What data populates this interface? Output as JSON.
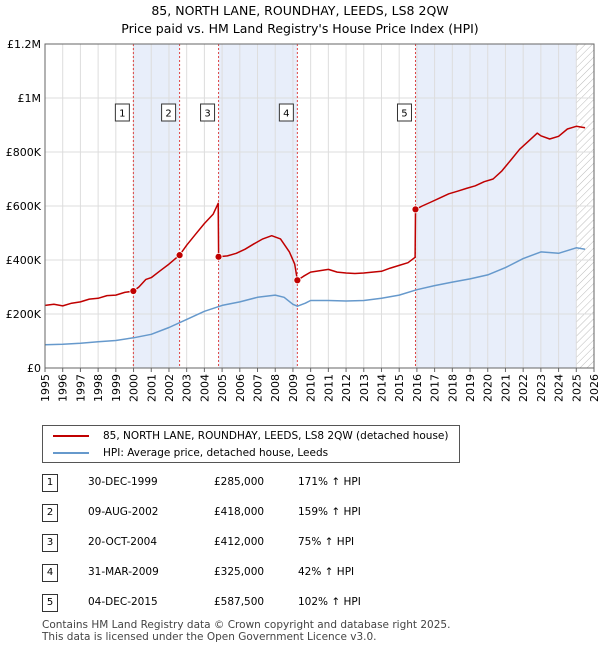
{
  "title": {
    "line1": "85, NORTH LANE, ROUNDHAY, LEEDS, LS8 2QW",
    "line2": "Price paid vs. HM Land Registry's House Price Index (HPI)"
  },
  "chart_data": {
    "type": "line",
    "title": "85, NORTH LANE, ROUNDHAY, LEEDS, LS8 2QW — Price paid vs. HM Land Registry's House Price Index (HPI)",
    "xlim": [
      1995,
      2026
    ],
    "ylim": [
      0,
      1200000
    ],
    "xticks": [
      1995,
      1996,
      1997,
      1998,
      1999,
      2000,
      2001,
      2002,
      2003,
      2004,
      2005,
      2006,
      2007,
      2008,
      2009,
      2010,
      2011,
      2012,
      2013,
      2014,
      2015,
      2016,
      2017,
      2018,
      2019,
      2020,
      2021,
      2022,
      2023,
      2024,
      2025,
      2026
    ],
    "yticks": [
      {
        "value": 0,
        "label": "£0"
      },
      {
        "value": 200000,
        "label": "£200K"
      },
      {
        "value": 400000,
        "label": "£400K"
      },
      {
        "value": 600000,
        "label": "£600K"
      },
      {
        "value": 800000,
        "label": "£800K"
      },
      {
        "value": 1000000,
        "label": "£1M"
      },
      {
        "value": 1200000,
        "label": "£1.2M"
      }
    ],
    "shaded_spans": [
      [
        1999.99,
        2002.6
      ],
      [
        2004.8,
        2009.25
      ],
      [
        2015.92,
        2025.0
      ]
    ],
    "hatched_from": 2025.0,
    "series": [
      {
        "name": "85, NORTH LANE, ROUNDHAY, LEEDS, LS8 2QW (detached house)",
        "color": "#c00000",
        "points": [
          [
            1995.0,
            232000
          ],
          [
            1995.5,
            236000
          ],
          [
            1996.0,
            230000
          ],
          [
            1996.5,
            240000
          ],
          [
            1997.0,
            245000
          ],
          [
            1997.5,
            255000
          ],
          [
            1998.0,
            258000
          ],
          [
            1998.5,
            268000
          ],
          [
            1999.0,
            270000
          ],
          [
            1999.5,
            280000
          ],
          [
            1999.99,
            285000
          ],
          [
            2000.3,
            300000
          ],
          [
            2000.7,
            328000
          ],
          [
            2001.0,
            335000
          ],
          [
            2001.5,
            360000
          ],
          [
            2002.0,
            385000
          ],
          [
            2002.6,
            418000
          ],
          [
            2003.0,
            455000
          ],
          [
            2003.5,
            495000
          ],
          [
            2004.0,
            535000
          ],
          [
            2004.5,
            570000
          ],
          [
            2004.78,
            610000
          ],
          [
            2004.8,
            412000
          ],
          [
            2005.3,
            415000
          ],
          [
            2005.8,
            425000
          ],
          [
            2006.3,
            440000
          ],
          [
            2006.8,
            460000
          ],
          [
            2007.3,
            478000
          ],
          [
            2007.8,
            490000
          ],
          [
            2008.3,
            478000
          ],
          [
            2008.8,
            430000
          ],
          [
            2009.1,
            385000
          ],
          [
            2009.25,
            325000
          ],
          [
            2009.6,
            340000
          ],
          [
            2010.0,
            355000
          ],
          [
            2010.5,
            360000
          ],
          [
            2011.0,
            365000
          ],
          [
            2011.5,
            355000
          ],
          [
            2012.0,
            352000
          ],
          [
            2012.5,
            350000
          ],
          [
            2013.0,
            352000
          ],
          [
            2013.5,
            355000
          ],
          [
            2014.0,
            358000
          ],
          [
            2014.5,
            370000
          ],
          [
            2015.0,
            380000
          ],
          [
            2015.5,
            390000
          ],
          [
            2015.9,
            410000
          ],
          [
            2015.92,
            587500
          ],
          [
            2016.3,
            600000
          ],
          [
            2016.8,
            615000
          ],
          [
            2017.3,
            630000
          ],
          [
            2017.8,
            645000
          ],
          [
            2018.3,
            655000
          ],
          [
            2018.8,
            665000
          ],
          [
            2019.3,
            675000
          ],
          [
            2019.8,
            690000
          ],
          [
            2020.3,
            700000
          ],
          [
            2020.8,
            730000
          ],
          [
            2021.3,
            770000
          ],
          [
            2021.8,
            810000
          ],
          [
            2022.3,
            840000
          ],
          [
            2022.8,
            870000
          ],
          [
            2023.0,
            860000
          ],
          [
            2023.5,
            848000
          ],
          [
            2024.0,
            858000
          ],
          [
            2024.5,
            885000
          ],
          [
            2025.0,
            895000
          ],
          [
            2025.5,
            890000
          ]
        ]
      },
      {
        "name": "HPI: Average price, detached house, Leeds",
        "color": "#6699cc",
        "points": [
          [
            1995.0,
            86000
          ],
          [
            1996.0,
            88000
          ],
          [
            1997.0,
            92000
          ],
          [
            1998.0,
            97000
          ],
          [
            1999.0,
            102000
          ],
          [
            2000.0,
            112000
          ],
          [
            2001.0,
            125000
          ],
          [
            2002.0,
            150000
          ],
          [
            2003.0,
            180000
          ],
          [
            2004.0,
            210000
          ],
          [
            2005.0,
            232000
          ],
          [
            2006.0,
            245000
          ],
          [
            2007.0,
            262000
          ],
          [
            2008.0,
            270000
          ],
          [
            2008.5,
            262000
          ],
          [
            2009.0,
            236000
          ],
          [
            2009.25,
            229000
          ],
          [
            2009.7,
            240000
          ],
          [
            2010.0,
            250000
          ],
          [
            2011.0,
            250000
          ],
          [
            2012.0,
            248000
          ],
          [
            2013.0,
            250000
          ],
          [
            2014.0,
            258000
          ],
          [
            2015.0,
            270000
          ],
          [
            2016.0,
            290000
          ],
          [
            2017.0,
            305000
          ],
          [
            2018.0,
            318000
          ],
          [
            2019.0,
            330000
          ],
          [
            2020.0,
            345000
          ],
          [
            2021.0,
            372000
          ],
          [
            2022.0,
            405000
          ],
          [
            2023.0,
            430000
          ],
          [
            2024.0,
            425000
          ],
          [
            2025.0,
            445000
          ],
          [
            2025.5,
            440000
          ]
        ]
      }
    ],
    "sales": [
      {
        "num": "1",
        "x": 1999.99,
        "price": 285000
      },
      {
        "num": "2",
        "x": 2002.6,
        "price": 418000
      },
      {
        "num": "3",
        "x": 2004.8,
        "price": 412000
      },
      {
        "num": "4",
        "x": 2009.25,
        "price": 325000
      },
      {
        "num": "5",
        "x": 2015.92,
        "price": 587500
      }
    ]
  },
  "legend": {
    "property": "85, NORTH LANE, ROUNDHAY, LEEDS, LS8 2QW (detached house)",
    "hpi": "HPI: Average price, detached house, Leeds",
    "property_color": "#c00000",
    "hpi_color": "#6699cc"
  },
  "sales_table": [
    {
      "num": "1",
      "date": "30-DEC-1999",
      "price": "£285,000",
      "hpi": "171% ↑ HPI"
    },
    {
      "num": "2",
      "date": "09-AUG-2002",
      "price": "£418,000",
      "hpi": "159% ↑ HPI"
    },
    {
      "num": "3",
      "date": "20-OCT-2004",
      "price": "£412,000",
      "hpi": "75% ↑ HPI"
    },
    {
      "num": "4",
      "date": "31-MAR-2009",
      "price": "£325,000",
      "hpi": "42% ↑ HPI"
    },
    {
      "num": "5",
      "date": "04-DEC-2015",
      "price": "£587,500",
      "hpi": "102% ↑ HPI"
    }
  ],
  "footer": {
    "line1": "Contains HM Land Registry data © Crown copyright and database right 2025.",
    "line2": "This data is licensed under the Open Government Licence v3.0."
  }
}
